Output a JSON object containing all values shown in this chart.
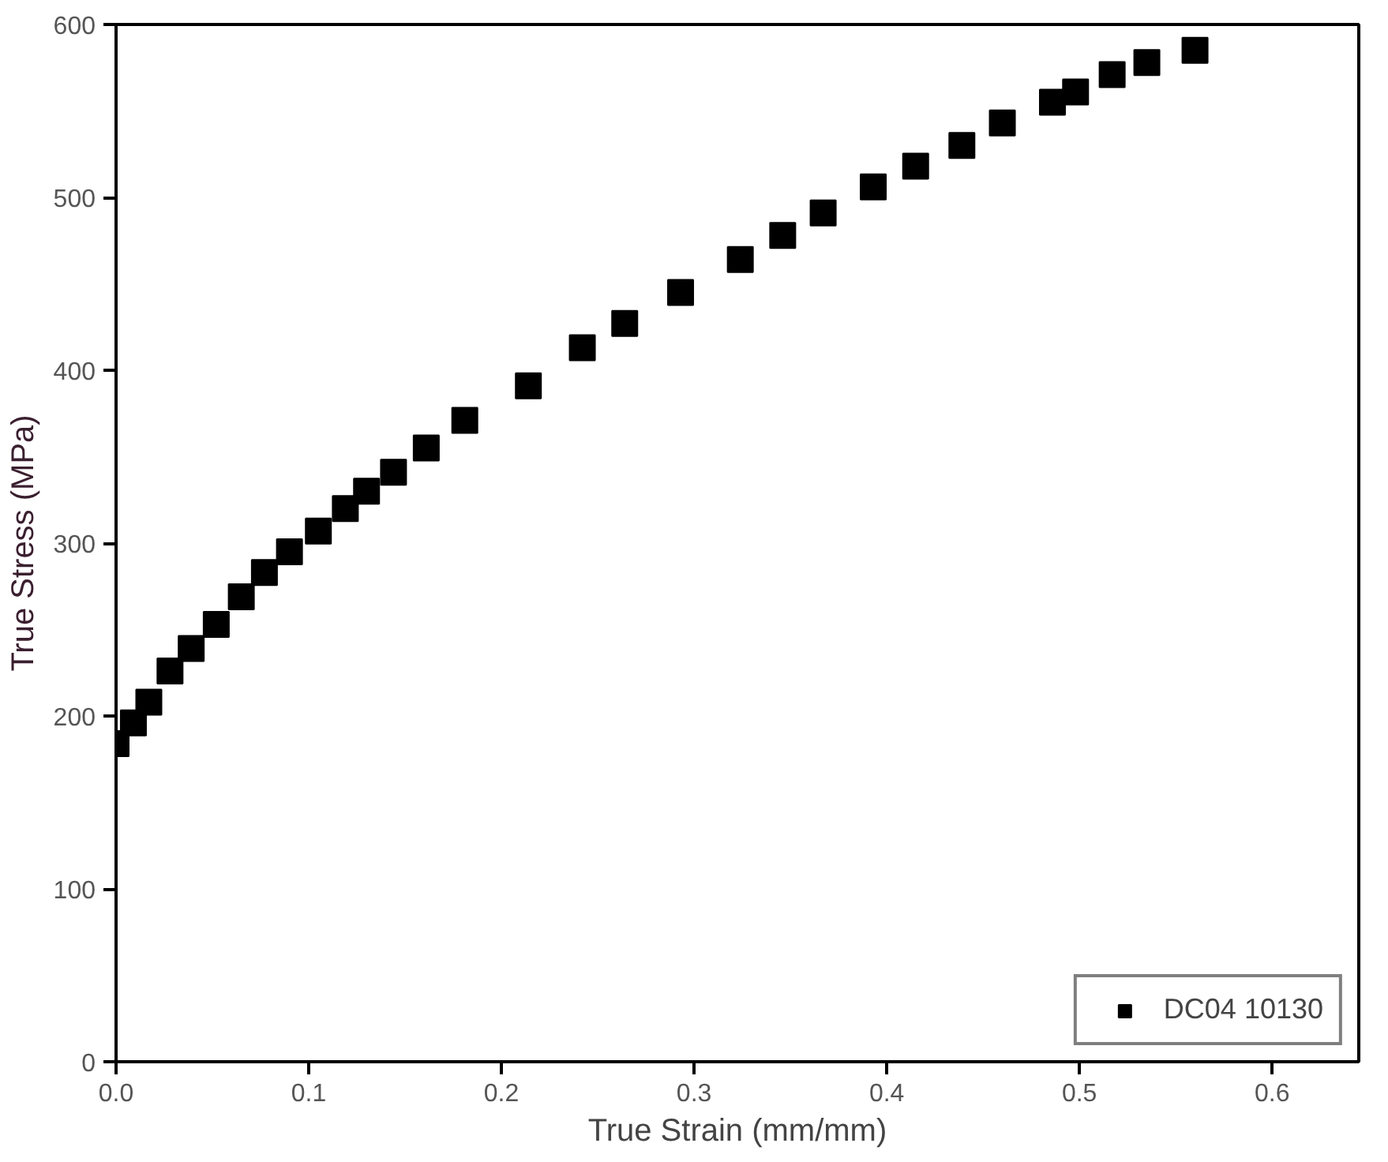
{
  "chart_data": {
    "type": "scatter",
    "xlabel": "True Strain (mm/mm)",
    "ylabel": "True Stress (MPa)",
    "x": [
      0,
      0.009,
      0.017,
      0.028,
      0.039,
      0.052,
      0.065,
      0.077,
      0.09,
      0.105,
      0.119,
      0.13,
      0.144,
      0.161,
      0.181,
      0.214,
      0.242,
      0.264,
      0.293,
      0.324,
      0.346,
      0.367,
      0.393,
      0.415,
      0.439,
      0.46,
      0.486,
      0.498,
      0.517,
      0.535,
      0.56
    ],
    "series": [
      {
        "name": "DC04 10130",
        "color": "#000000",
        "values": [
          184,
          196,
          208,
          226,
          239,
          253,
          269,
          283,
          295,
          307,
          320,
          330,
          341,
          355,
          371,
          391,
          413,
          427,
          445,
          464,
          478,
          491,
          506,
          518,
          530,
          543,
          555,
          561,
          571,
          578,
          585
        ]
      }
    ],
    "xlim": [
      0,
      0.645
    ],
    "ylim": [
      0,
      600
    ],
    "xticks": [
      {
        "value": 0,
        "label": "0.0"
      },
      {
        "value": 0.1,
        "label": "0.1"
      },
      {
        "value": 0.2,
        "label": "0.2"
      },
      {
        "value": 0.3,
        "label": "0.3"
      },
      {
        "value": 0.4,
        "label": "0.4"
      },
      {
        "value": 0.5,
        "label": "0.5"
      },
      {
        "value": 0.6,
        "label": "0.6"
      }
    ],
    "yticks": [
      0,
      100,
      200,
      300,
      400,
      500,
      600
    ],
    "marker": "square",
    "legend": "bottom right",
    "grid": false
  }
}
